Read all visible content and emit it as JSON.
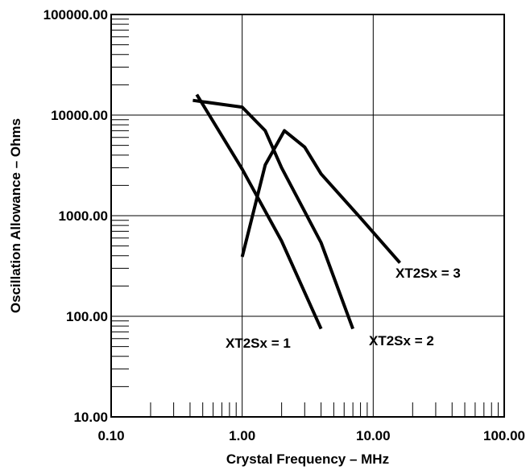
{
  "chart_data": {
    "type": "line",
    "title": "",
    "xlabel": "Crystal Frequency – MHz",
    "ylabel": "Oscillation Allowance – Ohms",
    "x_scale": "log",
    "y_scale": "log",
    "xlim": [
      0.1,
      100
    ],
    "ylim": [
      10,
      100000
    ],
    "grid": true,
    "legend": "none",
    "x_ticks": [
      {
        "value": 0.1,
        "label": "0.10"
      },
      {
        "value": 1,
        "label": "1.00"
      },
      {
        "value": 10,
        "label": "10.00"
      },
      {
        "value": 100,
        "label": "100.00"
      }
    ],
    "y_ticks": [
      {
        "value": 10,
        "label": "10.00"
      },
      {
        "value": 100,
        "label": "100.00"
      },
      {
        "value": 1000,
        "label": "1000.00"
      },
      {
        "value": 10000,
        "label": "10000.00"
      },
      {
        "value": 100000,
        "label": "100000.00"
      }
    ],
    "series": [
      {
        "name": "XT2Sx = 1",
        "points": [
          [
            0.45,
            16000
          ],
          [
            1.0,
            2900
          ],
          [
            2.0,
            560
          ],
          [
            4.0,
            75
          ]
        ]
      },
      {
        "name": "XT2Sx = 2",
        "points": [
          [
            0.42,
            14000
          ],
          [
            1.0,
            12000
          ],
          [
            1.5,
            7000
          ],
          [
            2.0,
            3000
          ],
          [
            4.0,
            540
          ],
          [
            7.0,
            75
          ]
        ]
      },
      {
        "name": "XT2Sx = 3",
        "points": [
          [
            1.0,
            390
          ],
          [
            1.5,
            3200
          ],
          [
            2.1,
            7000
          ],
          [
            3.0,
            4800
          ],
          [
            4.0,
            2600
          ],
          [
            8.0,
            950
          ],
          [
            16.0,
            340
          ]
        ]
      }
    ]
  }
}
